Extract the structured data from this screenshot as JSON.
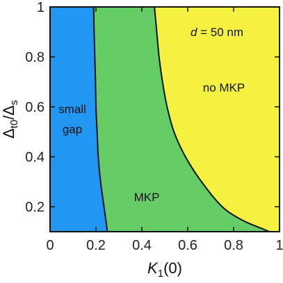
{
  "chart_data": {
    "type": "phase-diagram",
    "xlabel": {
      "symbol": "K",
      "subscript": "1",
      "suffix": "(0)"
    },
    "ylabel": {
      "delta_symbol": "Δ",
      "numerator_subscript": "t0",
      "slash": "/",
      "denominator_subscript": "s"
    },
    "xlim": [
      0,
      1
    ],
    "ylim": [
      0.1,
      1
    ],
    "x_ticks": [
      {
        "value": 0,
        "label": "0"
      },
      {
        "value": 0.2,
        "label": "0.2"
      },
      {
        "value": 0.4,
        "label": "0.4"
      },
      {
        "value": 0.6,
        "label": "0.6"
      },
      {
        "value": 0.8,
        "label": "0.8"
      },
      {
        "value": 1,
        "label": "1"
      }
    ],
    "y_ticks": [
      {
        "value": 0.2,
        "label": "0.2"
      },
      {
        "value": 0.4,
        "label": "0.4"
      },
      {
        "value": 0.6,
        "label": "0.6"
      },
      {
        "value": 0.8,
        "label": "0.8"
      },
      {
        "value": 1,
        "label": "1"
      }
    ],
    "annotation": {
      "symbol": "d",
      "text": " = 50 nm"
    },
    "regions": [
      {
        "id": "small-gap",
        "lines": [
          "small",
          "gap"
        ],
        "color": "#2196F3"
      },
      {
        "id": "mkp",
        "lines": [
          "MKP"
        ],
        "color": "#66CC66"
      },
      {
        "id": "no-mkp",
        "lines": [
          "no MKP"
        ],
        "color": "#F4F140"
      }
    ],
    "boundaries": {
      "small_gap_mkp": [
        [
          0.25,
          0.1
        ],
        [
          0.235,
          0.2
        ],
        [
          0.22,
          0.3
        ],
        [
          0.21,
          0.4
        ],
        [
          0.205,
          0.5
        ],
        [
          0.2,
          0.6
        ],
        [
          0.198,
          0.7
        ],
        [
          0.195,
          0.8
        ],
        [
          0.192,
          0.9
        ],
        [
          0.19,
          1.0
        ]
      ],
      "mkp_no_mkp": [
        [
          0.955,
          0.1
        ],
        [
          0.93,
          0.11
        ],
        [
          0.84,
          0.145
        ],
        [
          0.75,
          0.2
        ],
        [
          0.66,
          0.3
        ],
        [
          0.59,
          0.4
        ],
        [
          0.54,
          0.5
        ],
        [
          0.51,
          0.6
        ],
        [
          0.49,
          0.7
        ],
        [
          0.475,
          0.8
        ],
        [
          0.465,
          0.9
        ],
        [
          0.455,
          1.0
        ]
      ]
    }
  }
}
